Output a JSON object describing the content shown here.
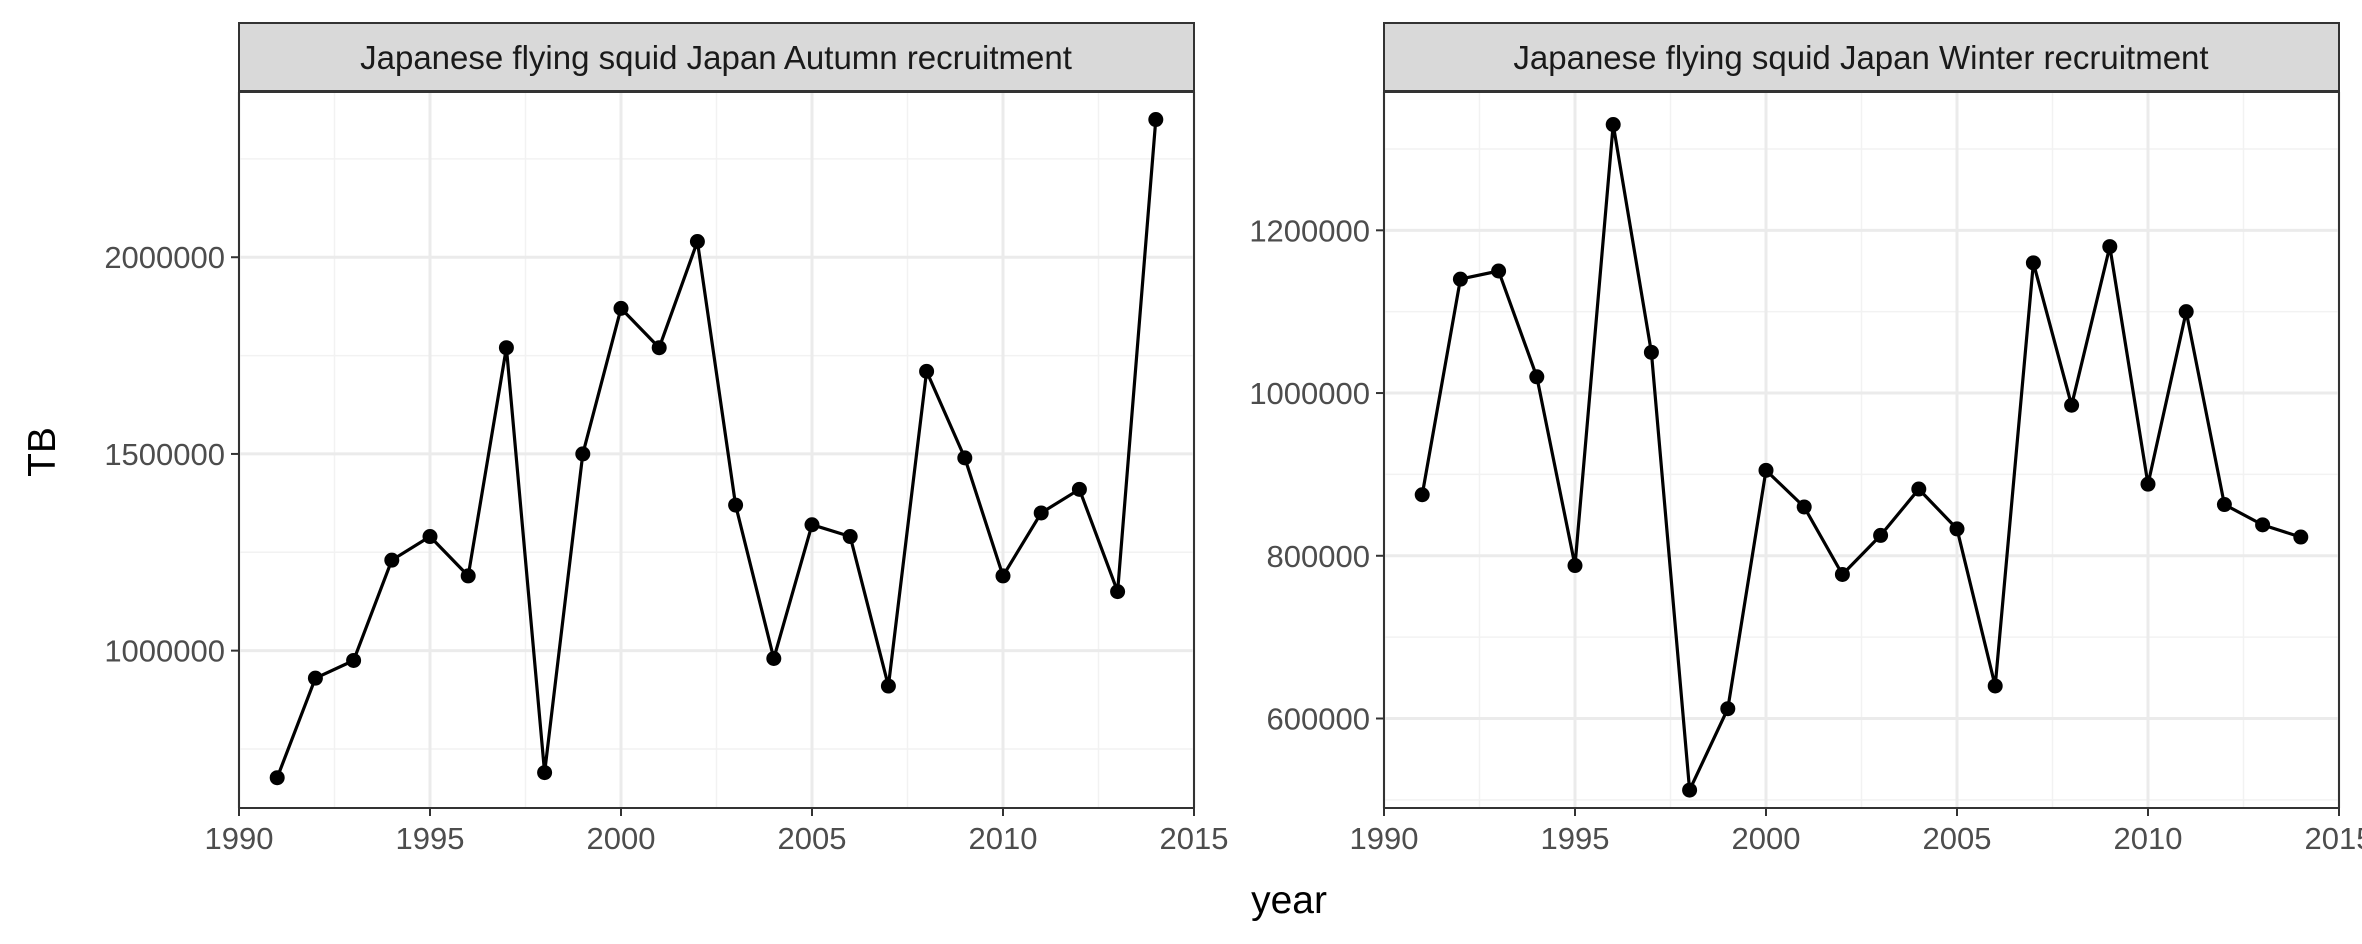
{
  "figure": {
    "xlabel": "year",
    "ylabel": "TB"
  },
  "colors": {
    "strip_fill": "#d9d9d9",
    "panel_border": "#333333",
    "grid_major": "#ebebeb",
    "grid_minor": "#f2f2f2",
    "series": "#000000"
  },
  "chart_data": [
    {
      "type": "line",
      "title": "Japanese flying squid Japan Autumn recruitment",
      "xlabel": "year",
      "ylabel": "TB",
      "grid": true,
      "xlim": [
        1990,
        2015
      ],
      "ylim": [
        600000,
        2420000
      ],
      "x_ticks": [
        1990,
        1995,
        2000,
        2005,
        2010,
        2015
      ],
      "y_ticks": [
        1000000,
        1500000,
        2000000
      ],
      "x": [
        1991,
        1992,
        1993,
        1994,
        1995,
        1996,
        1997,
        1998,
        1999,
        2000,
        2001,
        2002,
        2003,
        2004,
        2005,
        2006,
        2007,
        2008,
        2009,
        2010,
        2011,
        2012,
        2013,
        2014
      ],
      "series": [
        {
          "values": [
            677000,
            930000,
            975000,
            1230000,
            1290000,
            1190000,
            1770000,
            690000,
            1500000,
            1870000,
            1770000,
            2040000,
            1370000,
            980000,
            1320000,
            1290000,
            910000,
            1710000,
            1490000,
            1190000,
            1350000,
            1410000,
            1150000,
            2350000
          ]
        }
      ]
    },
    {
      "type": "line",
      "title": "Japanese flying squid Japan Winter recruitment",
      "xlabel": "year",
      "ylabel": "",
      "grid": true,
      "xlim": [
        1990,
        2015
      ],
      "ylim": [
        490000,
        1370000
      ],
      "x_ticks": [
        1990,
        1995,
        2000,
        2005,
        2010,
        2015
      ],
      "y_ticks": [
        600000,
        800000,
        1000000,
        1200000
      ],
      "x": [
        1991,
        1992,
        1993,
        1994,
        1995,
        1996,
        1997,
        1998,
        1999,
        2000,
        2001,
        2002,
        2003,
        2004,
        2005,
        2006,
        2007,
        2008,
        2009,
        2010,
        2011,
        2012,
        2013,
        2014
      ],
      "series": [
        {
          "values": [
            875000,
            1140000,
            1150000,
            1020000,
            788000,
            1330000,
            1050000,
            512000,
            612000,
            905000,
            860000,
            777000,
            825000,
            882000,
            833000,
            640000,
            1160000,
            985000,
            1180000,
            888000,
            1100000,
            863000,
            838000,
            823000
          ]
        }
      ]
    }
  ]
}
